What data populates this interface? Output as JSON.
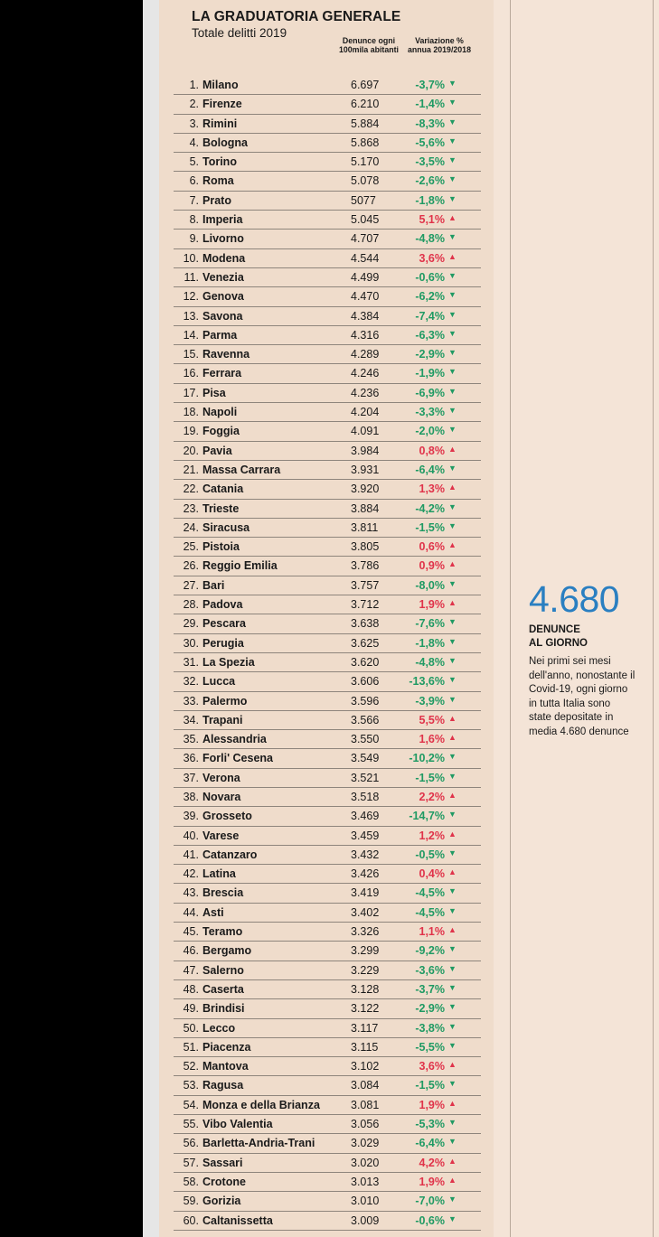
{
  "title": "LA GRADUATORIA GENERALE",
  "subtitle": "Totale delitti 2019",
  "col1_header": "Denunce ogni 100mila abitanti",
  "col2_header": "Variazione % annua 2019/2018",
  "colors": {
    "down": "#1f9a63",
    "up": "#e0334a",
    "accent": "#2a7fc1"
  },
  "rows": [
    {
      "rank": "1.",
      "name": "Milano",
      "value": "6.697",
      "change": "-3,7%",
      "dir": "down"
    },
    {
      "rank": "2.",
      "name": "Firenze",
      "value": "6.210",
      "change": "-1,4%",
      "dir": "down"
    },
    {
      "rank": "3.",
      "name": "Rimini",
      "value": "5.884",
      "change": "-8,3%",
      "dir": "down"
    },
    {
      "rank": "4.",
      "name": "Bologna",
      "value": "5.868",
      "change": "-5,6%",
      "dir": "down"
    },
    {
      "rank": "5.",
      "name": "Torino",
      "value": "5.170",
      "change": "-3,5%",
      "dir": "down"
    },
    {
      "rank": "6.",
      "name": "Roma",
      "value": "5.078",
      "change": "-2,6%",
      "dir": "down"
    },
    {
      "rank": "7.",
      "name": "Prato",
      "value": "5077",
      "change": "-1,8%",
      "dir": "down"
    },
    {
      "rank": "8.",
      "name": "Imperia",
      "value": "5.045",
      "change": "5,1%",
      "dir": "up"
    },
    {
      "rank": "9.",
      "name": "Livorno",
      "value": "4.707",
      "change": "-4,8%",
      "dir": "down"
    },
    {
      "rank": "10.",
      "name": "Modena",
      "value": "4.544",
      "change": "3,6%",
      "dir": "up"
    },
    {
      "rank": "11.",
      "name": "Venezia",
      "value": "4.499",
      "change": "-0,6%",
      "dir": "down"
    },
    {
      "rank": "12.",
      "name": "Genova",
      "value": "4.470",
      "change": "-6,2%",
      "dir": "down"
    },
    {
      "rank": "13.",
      "name": "Savona",
      "value": "4.384",
      "change": "-7,4%",
      "dir": "down"
    },
    {
      "rank": "14.",
      "name": "Parma",
      "value": "4.316",
      "change": "-6,3%",
      "dir": "down"
    },
    {
      "rank": "15.",
      "name": "Ravenna",
      "value": "4.289",
      "change": "-2,9%",
      "dir": "down"
    },
    {
      "rank": "16.",
      "name": "Ferrara",
      "value": "4.246",
      "change": "-1,9%",
      "dir": "down"
    },
    {
      "rank": "17.",
      "name": "Pisa",
      "value": "4.236",
      "change": "-6,9%",
      "dir": "down"
    },
    {
      "rank": "18.",
      "name": "Napoli",
      "value": "4.204",
      "change": "-3,3%",
      "dir": "down"
    },
    {
      "rank": "19.",
      "name": "Foggia",
      "value": "4.091",
      "change": "-2,0%",
      "dir": "down"
    },
    {
      "rank": "20.",
      "name": "Pavia",
      "value": "3.984",
      "change": "0,8%",
      "dir": "up"
    },
    {
      "rank": "21.",
      "name": "Massa Carrara",
      "value": "3.931",
      "change": "-6,4%",
      "dir": "down"
    },
    {
      "rank": "22.",
      "name": "Catania",
      "value": "3.920",
      "change": "1,3%",
      "dir": "up"
    },
    {
      "rank": "23.",
      "name": "Trieste",
      "value": "3.884",
      "change": "-4,2%",
      "dir": "down"
    },
    {
      "rank": "24.",
      "name": "Siracusa",
      "value": "3.811",
      "change": "-1,5%",
      "dir": "down"
    },
    {
      "rank": "25.",
      "name": "Pistoia",
      "value": "3.805",
      "change": "0,6%",
      "dir": "up"
    },
    {
      "rank": "26.",
      "name": "Reggio Emilia",
      "value": "3.786",
      "change": "0,9%",
      "dir": "up"
    },
    {
      "rank": "27.",
      "name": "Bari",
      "value": "3.757",
      "change": "-8,0%",
      "dir": "down"
    },
    {
      "rank": "28.",
      "name": "Padova",
      "value": "3.712",
      "change": "1,9%",
      "dir": "up"
    },
    {
      "rank": "29.",
      "name": "Pescara",
      "value": "3.638",
      "change": "-7,6%",
      "dir": "down"
    },
    {
      "rank": "30.",
      "name": "Perugia",
      "value": "3.625",
      "change": "-1,8%",
      "dir": "down"
    },
    {
      "rank": "31.",
      "name": "La Spezia",
      "value": "3.620",
      "change": "-4,8%",
      "dir": "down"
    },
    {
      "rank": "32.",
      "name": "Lucca",
      "value": "3.606",
      "change": "-13,6%",
      "dir": "down"
    },
    {
      "rank": "33.",
      "name": "Palermo",
      "value": "3.596",
      "change": "-3,9%",
      "dir": "down"
    },
    {
      "rank": "34.",
      "name": "Trapani",
      "value": "3.566",
      "change": "5,5%",
      "dir": "up"
    },
    {
      "rank": "35.",
      "name": "Alessandria",
      "value": "3.550",
      "change": "1,6%",
      "dir": "up"
    },
    {
      "rank": "36.",
      "name": "Forli' Cesena",
      "value": "3.549",
      "change": "-10,2%",
      "dir": "down"
    },
    {
      "rank": "37.",
      "name": "Verona",
      "value": "3.521",
      "change": "-1,5%",
      "dir": "down"
    },
    {
      "rank": "38.",
      "name": "Novara",
      "value": "3.518",
      "change": "2,2%",
      "dir": "up"
    },
    {
      "rank": "39.",
      "name": "Grosseto",
      "value": "3.469",
      "change": "-14,7%",
      "dir": "down"
    },
    {
      "rank": "40.",
      "name": "Varese",
      "value": "3.459",
      "change": "1,2%",
      "dir": "up"
    },
    {
      "rank": "41.",
      "name": "Catanzaro",
      "value": "3.432",
      "change": "-0,5%",
      "dir": "down"
    },
    {
      "rank": "42.",
      "name": "Latina",
      "value": "3.426",
      "change": "0,4%",
      "dir": "up"
    },
    {
      "rank": "43.",
      "name": "Brescia",
      "value": "3.419",
      "change": "-4,5%",
      "dir": "down"
    },
    {
      "rank": "44.",
      "name": "Asti",
      "value": "3.402",
      "change": "-4,5%",
      "dir": "down"
    },
    {
      "rank": "45.",
      "name": "Teramo",
      "value": "3.326",
      "change": "1,1%",
      "dir": "up"
    },
    {
      "rank": "46.",
      "name": "Bergamo",
      "value": "3.299",
      "change": "-9,2%",
      "dir": "down"
    },
    {
      "rank": "47.",
      "name": "Salerno",
      "value": "3.229",
      "change": "-3,6%",
      "dir": "down"
    },
    {
      "rank": "48.",
      "name": "Caserta",
      "value": "3.128",
      "change": "-3,7%",
      "dir": "down"
    },
    {
      "rank": "49.",
      "name": "Brindisi",
      "value": "3.122",
      "change": "-2,9%",
      "dir": "down"
    },
    {
      "rank": "50.",
      "name": "Lecco",
      "value": "3.117",
      "change": "-3,8%",
      "dir": "down"
    },
    {
      "rank": "51.",
      "name": "Piacenza",
      "value": "3.115",
      "change": "-5,5%",
      "dir": "down"
    },
    {
      "rank": "52.",
      "name": "Mantova",
      "value": "3.102",
      "change": "3,6%",
      "dir": "up"
    },
    {
      "rank": "53.",
      "name": "Ragusa",
      "value": "3.084",
      "change": "-1,5%",
      "dir": "down"
    },
    {
      "rank": "54.",
      "name": "Monza e della Brianza",
      "value": "3.081",
      "change": "1,9%",
      "dir": "up"
    },
    {
      "rank": "55.",
      "name": "Vibo Valentia",
      "value": "3.056",
      "change": "-5,3%",
      "dir": "down"
    },
    {
      "rank": "56.",
      "name": "Barletta-Andria-Trani",
      "value": "3.029",
      "change": "-6,4%",
      "dir": "down"
    },
    {
      "rank": "57.",
      "name": "Sassari",
      "value": "3.020",
      "change": "4,2%",
      "dir": "up"
    },
    {
      "rank": "58.",
      "name": "Crotone",
      "value": "3.013",
      "change": "1,9%",
      "dir": "up"
    },
    {
      "rank": "59.",
      "name": "Gorizia",
      "value": "3.010",
      "change": "-7,0%",
      "dir": "down"
    },
    {
      "rank": "60.",
      "name": "Caltanissetta",
      "value": "3.009",
      "change": "-0,6%",
      "dir": "down"
    }
  ],
  "sidebar": {
    "big_number": "4.680",
    "heading_line1": "DENUNCE",
    "heading_line2": "AL GIORNO",
    "text": "Nei primi sei mesi dell'anno, nonostante il Covid-19, ogni giorno in tutta Italia sono state depositate in media 4.680 denunce"
  }
}
